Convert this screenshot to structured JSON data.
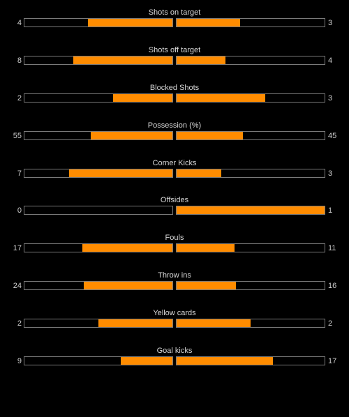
{
  "colors": {
    "background": "#000000",
    "bar_fill": "#ff8c00",
    "bar_border": "#7a7a7a",
    "text": "#cfcfcf"
  },
  "stats": [
    {
      "label": "Shots on target",
      "home": "4",
      "away": "3",
      "home_fill": 0.57,
      "away_fill": 0.43
    },
    {
      "label": "Shots off target",
      "home": "8",
      "away": "4",
      "home_fill": 0.67,
      "away_fill": 0.33
    },
    {
      "label": "Blocked Shots",
      "home": "2",
      "away": "3",
      "home_fill": 0.4,
      "away_fill": 0.6
    },
    {
      "label": "Possession (%)",
      "home": "55",
      "away": "45",
      "home_fill": 0.55,
      "away_fill": 0.45
    },
    {
      "label": "Corner Kicks",
      "home": "7",
      "away": "3",
      "home_fill": 0.7,
      "away_fill": 0.3
    },
    {
      "label": "Offsides",
      "home": "0",
      "away": "1",
      "home_fill": 0.0,
      "away_fill": 1.0
    },
    {
      "label": "Fouls",
      "home": "17",
      "away": "11",
      "home_fill": 0.61,
      "away_fill": 0.39
    },
    {
      "label": "Throw ins",
      "home": "24",
      "away": "16",
      "home_fill": 0.6,
      "away_fill": 0.4
    },
    {
      "label": "Yellow cards",
      "home": "2",
      "away": "2",
      "home_fill": 0.5,
      "away_fill": 0.5
    },
    {
      "label": "Goal kicks",
      "home": "9",
      "away": "17",
      "home_fill": 0.35,
      "away_fill": 0.65
    }
  ]
}
